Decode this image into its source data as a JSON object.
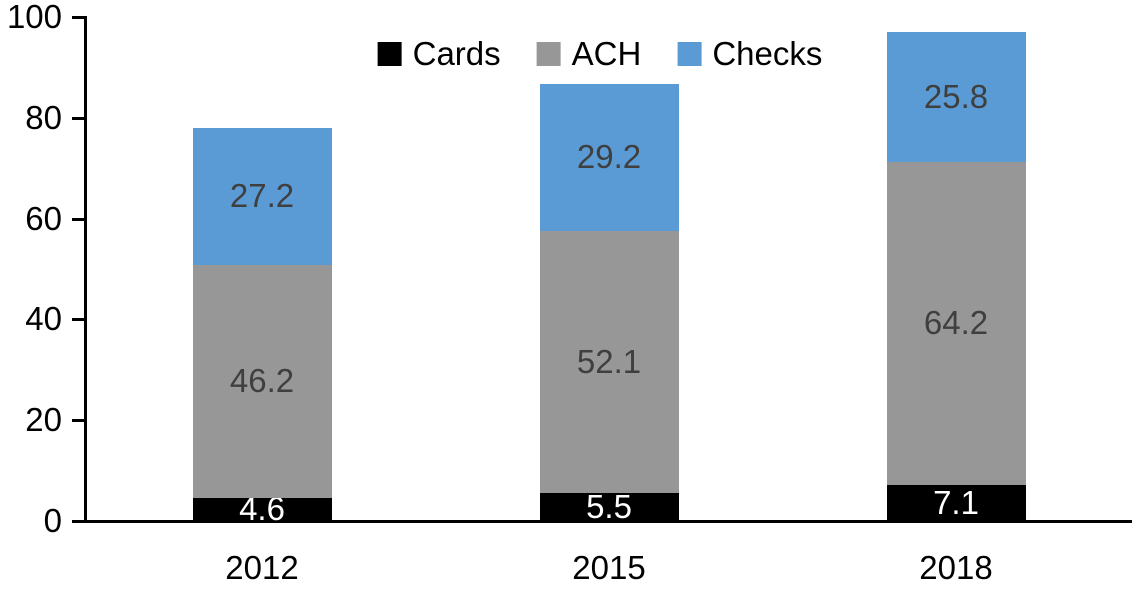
{
  "chart_data": {
    "type": "bar",
    "stacked": true,
    "title": "",
    "xlabel": "",
    "ylabel": "",
    "categories": [
      "2012",
      "2015",
      "2018"
    ],
    "series": [
      {
        "name": "Cards",
        "color": "#000000",
        "label_color": "#FFFFFF",
        "values": [
          4.6,
          5.5,
          7.1
        ]
      },
      {
        "name": "ACH",
        "color": "#979797",
        "label_color": "#3F3F3F",
        "values": [
          46.2,
          52.1,
          64.2
        ]
      },
      {
        "name": "Checks",
        "color": "#5B9BD5",
        "label_color": "#3F3F3F",
        "values": [
          27.2,
          29.2,
          25.8
        ]
      }
    ],
    "y_ticks": [
      0,
      20,
      40,
      60,
      80,
      100
    ],
    "ylim": [
      0,
      100
    ],
    "grid": false,
    "data_labels": true,
    "legend_position": "top"
  },
  "colors": {
    "background": "#FFFFFF",
    "axis": "#000000",
    "tick_label": "#000000"
  }
}
